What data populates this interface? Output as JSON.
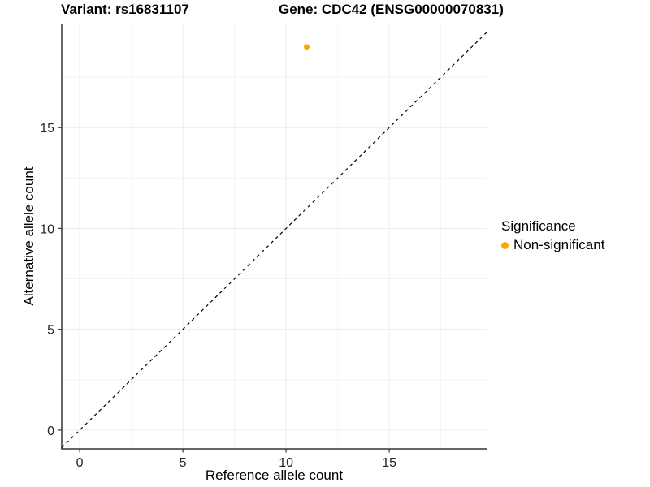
{
  "chart_data": {
    "type": "scatter",
    "titles": {
      "variant": "Variant: rs16831107",
      "gene": "Gene: CDC42 (ENSG00000070831)"
    },
    "xlabel": "Reference allele count",
    "ylabel": "Alternative allele count",
    "xlim": [
      -0.87,
      19.72
    ],
    "ylim": [
      -0.93,
      20.12
    ],
    "x_ticks": [
      0,
      5,
      10,
      15
    ],
    "y_ticks": [
      0,
      5,
      10,
      15
    ],
    "x_minor_ticks": [
      2.5,
      7.5,
      12.5,
      17.5
    ],
    "y_minor_ticks": [
      2.5,
      7.5,
      12.5,
      17.5
    ],
    "grid": true,
    "series": [
      {
        "name": "Non-significant",
        "color": "#FFA500",
        "point_radius": 3.5,
        "points": [
          {
            "x": 11,
            "y": 19
          }
        ]
      }
    ],
    "reference_line": {
      "kind": "identity",
      "style": "dashed",
      "color": "#000000"
    },
    "legend": {
      "position": "right",
      "title": "Significance",
      "items": [
        {
          "label": "Non-significant",
          "color": "#FFA500"
        }
      ]
    },
    "colors": {
      "background": "#ffffff",
      "axis_line": "#333333",
      "grid_major": "#ececec",
      "grid_minor": "#f4f4f4",
      "tick_text": "#262626"
    }
  }
}
